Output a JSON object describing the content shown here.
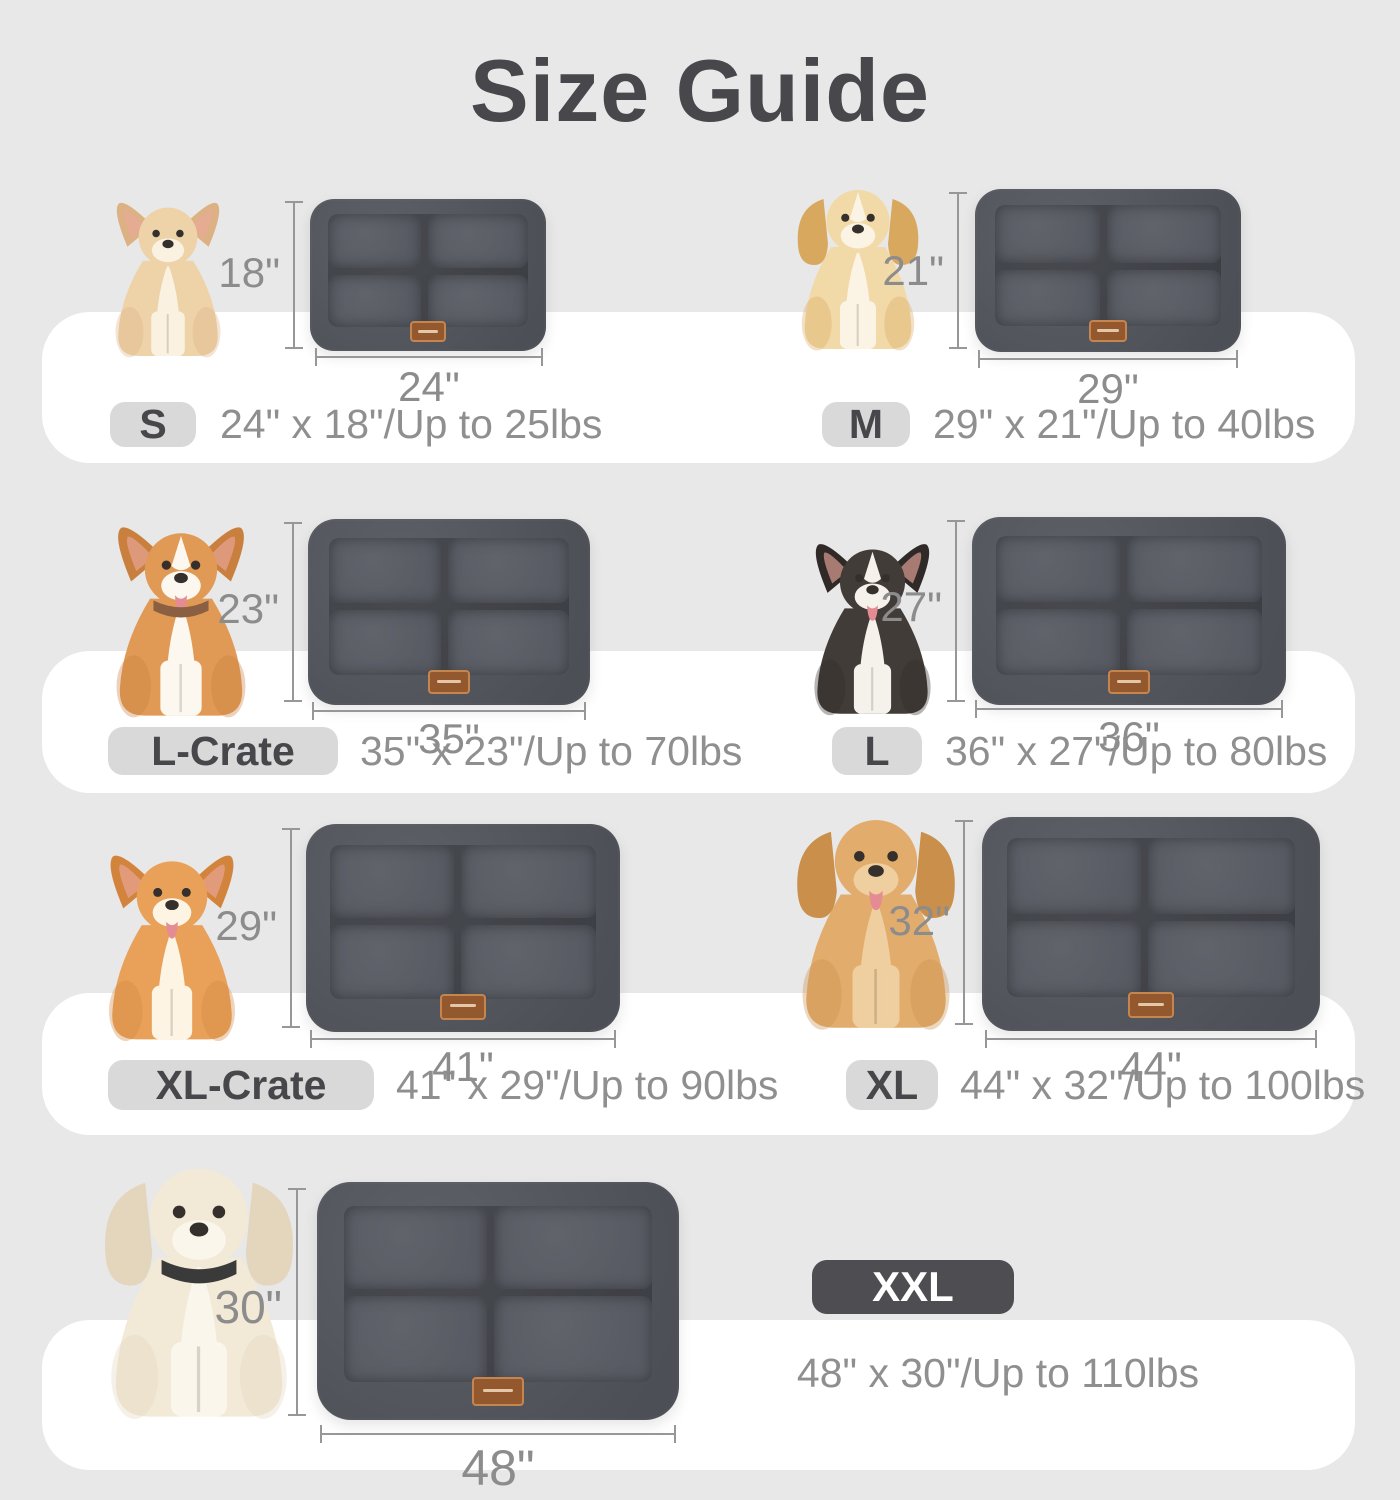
{
  "title": "Size Guide",
  "colors": {
    "background": "#e8e8e8",
    "band": "#ffffff",
    "title_text": "#48484c",
    "badge_bg": "#d9d9d9",
    "badge_text": "#47474b",
    "badge_dark_bg": "#4d4d52",
    "badge_dark_text": "#ffffff",
    "spec_text": "#8f8f8f",
    "dim_text": "#8c8c8c",
    "mat_base": "#53565d",
    "mat_panel": "#585b63",
    "mat_tag": "#94582f"
  },
  "sizes": [
    {
      "badge": "S",
      "spec": "24\" x 18\"/Up to 25lbs",
      "width_label": "24\"",
      "height_label": "18\"",
      "breed": "chihuahua"
    },
    {
      "badge": "M",
      "spec": "29\" x 21\"/Up to 40lbs",
      "width_label": "29\"",
      "height_label": "21\"",
      "breed": "puppy"
    },
    {
      "badge": "L-Crate",
      "spec": "35\" x 23\"/Up to 70lbs",
      "width_label": "35\"",
      "height_label": "23\"",
      "breed": "corgi"
    },
    {
      "badge": "L",
      "spec": "36\" x 27\"/Up to 80lbs",
      "width_label": "36\"",
      "height_label": "27\"",
      "breed": "border-collie"
    },
    {
      "badge": "XL-Crate",
      "spec": "41\" x 29\"/Up to 90lbs",
      "width_label": "41\"",
      "height_label": "29\"",
      "breed": "shiba-inu"
    },
    {
      "badge": "XL",
      "spec": "44\" x 32\"/Up to 100lbs",
      "width_label": "44\"",
      "height_label": "32\"",
      "breed": "golden-retriever"
    },
    {
      "badge": "XXL",
      "spec": "48\" x 30\"/Up to 110lbs",
      "width_label": "48\"",
      "height_label": "30\"",
      "breed": "white-retriever"
    }
  ],
  "dogs": {
    "chihuahua": {
      "ears": "up",
      "main": "#eed3a9",
      "light": "#faf1e0",
      "dark": "#dcb183",
      "tongue": false,
      "blaze": false,
      "collar": null
    },
    "puppy": {
      "ears": "floppy",
      "main": "#f2d9a8",
      "light": "#fbf3e3",
      "dark": "#d9a85f",
      "tongue": false,
      "blaze": true,
      "collar": null
    },
    "corgi": {
      "ears": "up",
      "main": "#e09a55",
      "light": "#fdf8ef",
      "dark": "#c97f3e",
      "tongue": true,
      "blaze": true,
      "collar": "#8b5f41"
    },
    "border-collie": {
      "ears": "up",
      "main": "#423c38",
      "light": "#f5f2ec",
      "dark": "#2f2a27",
      "tongue": true,
      "blaze": true,
      "collar": null
    },
    "shiba-inu": {
      "ears": "up",
      "main": "#e9a159",
      "light": "#fdf4e4",
      "dark": "#d2833c",
      "tongue": true,
      "blaze": false,
      "collar": null
    },
    "golden-retriever": {
      "ears": "floppy",
      "main": "#e2ac6c",
      "light": "#efcf9f",
      "dark": "#c98f4b",
      "tongue": true,
      "blaze": false,
      "collar": null
    },
    "white-retriever": {
      "ears": "floppy",
      "main": "#f2e9d7",
      "light": "#faf6ec",
      "dark": "#e3d6bd",
      "tongue": false,
      "blaze": false,
      "collar": "#3a3a3a"
    }
  }
}
